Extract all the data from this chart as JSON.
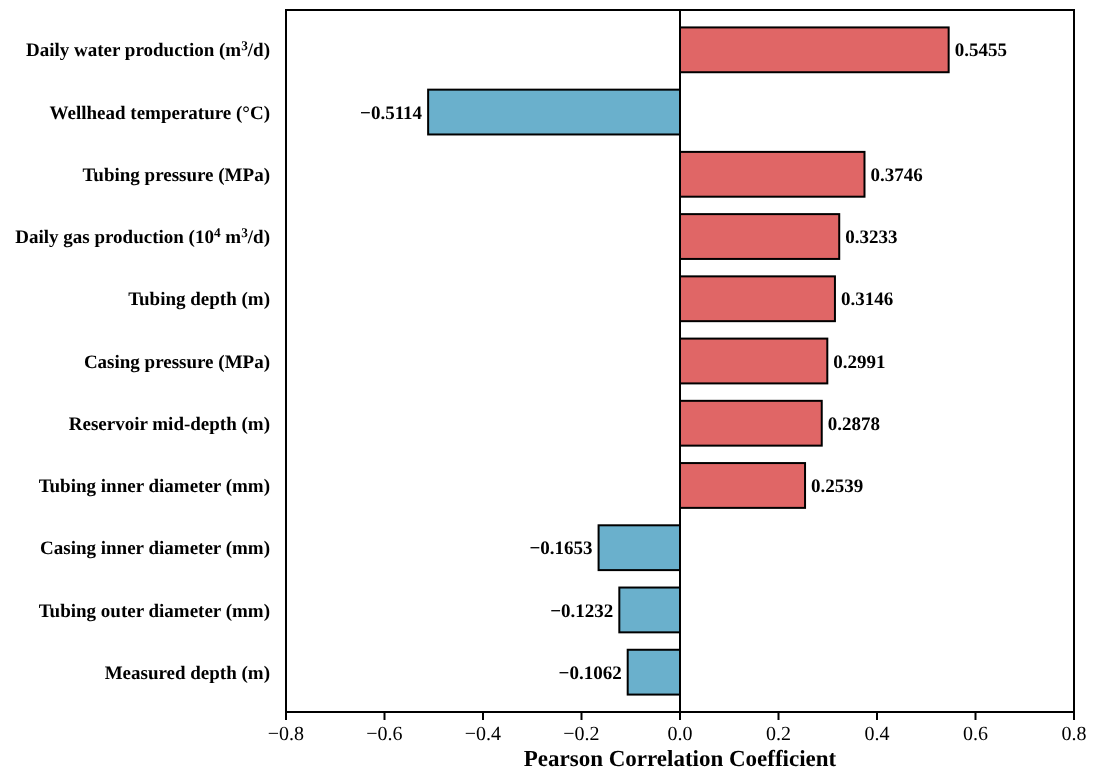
{
  "chart_data": {
    "type": "bar",
    "orientation": "horizontal",
    "xlabel": "Pearson Correlation Coefficient",
    "categories": [
      "Daily water production (m$^{3}$/d)",
      "Wellhead temperature (°C)",
      "Tubing pressure (MPa)",
      "Daily gas production (10$^{4}$ m$^{3}$/d)",
      "Tubing depth (m)",
      "Casing pressure (MPa)",
      "Reservoir mid-depth (m)",
      "Tubing inner diameter (mm)",
      "Casing inner diameter (mm)",
      "Tubing outer diameter (mm)",
      "Measured depth (m)"
    ],
    "values": [
      0.5455,
      -0.5114,
      0.3746,
      0.3233,
      0.3146,
      0.2991,
      0.2878,
      0.2539,
      -0.1653,
      -0.1232,
      -0.1062
    ],
    "colors": [
      "#e06666",
      "#6ab0cc",
      "#e06666",
      "#e06666",
      "#e06666",
      "#e06666",
      "#e06666",
      "#e06666",
      "#6ab0cc",
      "#6ab0cc",
      "#6ab0cc"
    ],
    "value_labels": [
      "0.5455",
      "−0.5114",
      "0.3746",
      "0.3233",
      "0.3146",
      "0.2991",
      "0.2878",
      "0.2539",
      "−0.1653",
      "−0.1232",
      "−0.1062"
    ],
    "xlim": [
      -0.8,
      0.8
    ],
    "xticks": [
      {
        "value": -0.8,
        "label": "−0.8"
      },
      {
        "value": -0.6,
        "label": "−0.6"
      },
      {
        "value": -0.4,
        "label": "−0.4"
      },
      {
        "value": -0.2,
        "label": "−0.2"
      },
      {
        "value": 0,
        "label": "0.0"
      },
      {
        "value": 0.2,
        "label": "0.2"
      },
      {
        "value": 0.4,
        "label": "0.4"
      },
      {
        "value": 0.6,
        "label": "0.6"
      },
      {
        "value": 0.8,
        "label": "0.8"
      }
    ],
    "ref_lines": [
      {
        "axis": "x",
        "value": 0,
        "color": "#000000"
      }
    ]
  }
}
